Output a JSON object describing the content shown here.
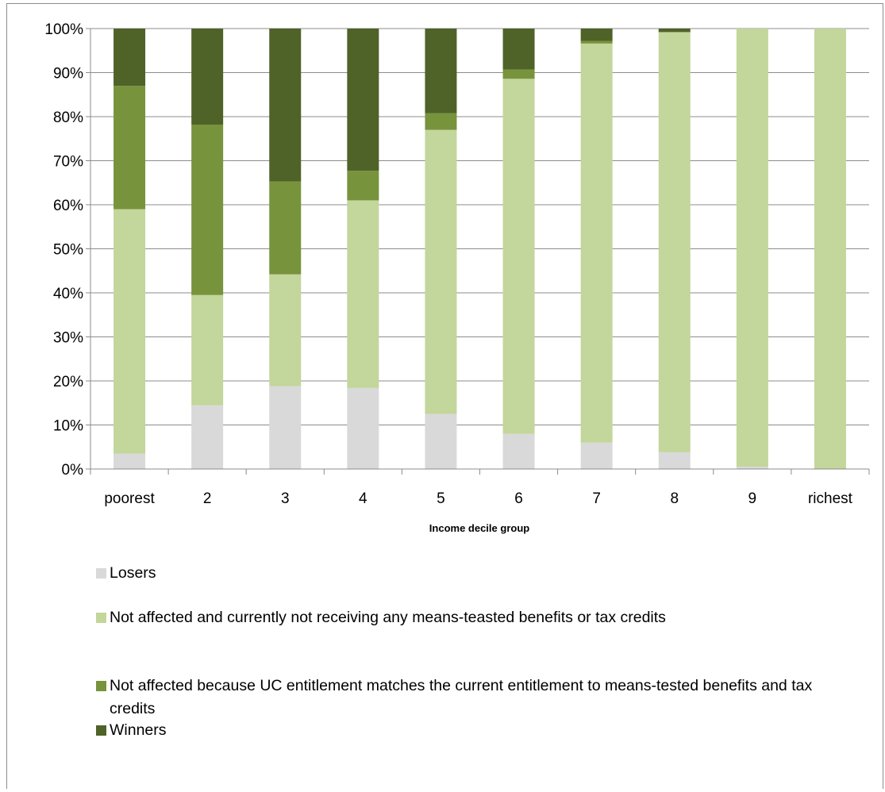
{
  "chart_data": {
    "type": "bar",
    "stacked": true,
    "title": "",
    "xlabel": "Income decile group",
    "ylabel": "",
    "ylim": [
      0,
      100
    ],
    "yticks": [
      "0%",
      "10%",
      "20%",
      "30%",
      "40%",
      "50%",
      "60%",
      "70%",
      "80%",
      "90%",
      "100%"
    ],
    "grid": true,
    "legend_position": "bottom",
    "categories": [
      "poorest",
      "2",
      "3",
      "4",
      "5",
      "6",
      "7",
      "8",
      "9",
      "richest"
    ],
    "series": [
      {
        "name": "Losers",
        "color": "#d9d9d9",
        "values": [
          3.5,
          14.5,
          18.8,
          18.4,
          12.5,
          8.0,
          6.0,
          3.8,
          0.5,
          0.0
        ]
      },
      {
        "name": "Not affected and currently not receiving any means-teasted benefits or tax credits",
        "color": "#c3d69b",
        "values": [
          55.5,
          25.0,
          25.4,
          42.6,
          64.5,
          80.6,
          90.6,
          95.4,
          99.5,
          100.0
        ]
      },
      {
        "name": "Not affected because UC entitlement matches the current entitlement to means-tested benefits and tax credits",
        "color": "#77933c",
        "values": [
          28.0,
          38.7,
          21.1,
          6.7,
          3.8,
          2.1,
          0.6,
          0.0,
          0.0,
          0.0
        ]
      },
      {
        "name": "Winners",
        "color": "#4f6228",
        "values": [
          13.0,
          21.8,
          34.7,
          32.3,
          19.2,
          9.3,
          2.8,
          0.8,
          0.0,
          0.0
        ]
      }
    ]
  }
}
